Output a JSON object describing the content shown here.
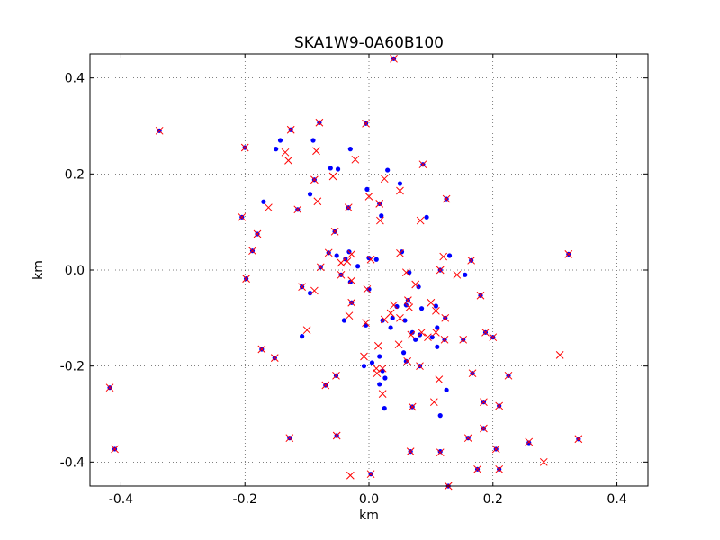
{
  "chart_data": {
    "type": "scatter",
    "title": "SKA1W9-0A60B100",
    "xlabel": "km",
    "ylabel": "km",
    "xlim": [
      -0.45,
      0.45
    ],
    "ylim": [
      -0.45,
      0.45
    ],
    "xticks": [
      "-0.4",
      "-0.2",
      "0.0",
      "0.2",
      "0.4"
    ],
    "yticks": [
      "-0.4",
      "-0.2",
      "0.0",
      "0.2",
      "0.4"
    ],
    "xtick_values": [
      -0.4,
      -0.2,
      0.0,
      0.2,
      0.4
    ],
    "ytick_values": [
      -0.4,
      -0.2,
      0.0,
      0.2,
      0.4
    ],
    "grid": true,
    "colors": {
      "series_1": "#0000ff",
      "series_2": "#ff0000"
    },
    "series": [
      {
        "marker": "dot",
        "color": "#0000ff",
        "points": [
          [
            0.04,
            0.44
          ],
          [
            -0.338,
            0.29
          ],
          [
            -0.2,
            0.255
          ],
          [
            -0.15,
            0.252
          ],
          [
            -0.143,
            0.27
          ],
          [
            -0.126,
            0.292
          ],
          [
            -0.08,
            0.307
          ],
          [
            -0.09,
            0.27
          ],
          [
            -0.062,
            0.212
          ],
          [
            -0.005,
            0.305
          ],
          [
            -0.03,
            0.252
          ],
          [
            -0.05,
            0.21
          ],
          [
            0.087,
            0.22
          ],
          [
            0.03,
            0.208
          ],
          [
            0.05,
            0.18
          ],
          [
            -0.088,
            0.188
          ],
          [
            -0.095,
            0.158
          ],
          [
            -0.003,
            0.168
          ],
          [
            0.017,
            0.138
          ],
          [
            0.125,
            0.148
          ],
          [
            -0.17,
            0.142
          ],
          [
            -0.115,
            0.126
          ],
          [
            -0.033,
            0.13
          ],
          [
            0.093,
            0.11
          ],
          [
            0.02,
            0.113
          ],
          [
            -0.205,
            0.11
          ],
          [
            -0.055,
            0.08
          ],
          [
            -0.18,
            0.075
          ],
          [
            -0.188,
            0.04
          ],
          [
            -0.065,
            0.036
          ],
          [
            -0.032,
            0.038
          ],
          [
            -0.052,
            0.03
          ],
          [
            0.13,
            0.03
          ],
          [
            0.165,
            0.02
          ],
          [
            0.053,
            0.038
          ],
          [
            -0.078,
            0.006
          ],
          [
            -0.038,
            0.023
          ],
          [
            -0.018,
            0.008
          ],
          [
            0.0,
            0.025
          ],
          [
            0.012,
            0.022
          ],
          [
            -0.198,
            -0.018
          ],
          [
            -0.045,
            -0.01
          ],
          [
            -0.03,
            -0.025
          ],
          [
            0.065,
            -0.005
          ],
          [
            0.115,
            0.0
          ],
          [
            0.155,
            -0.01
          ],
          [
            -0.108,
            -0.035
          ],
          [
            -0.095,
            -0.048
          ],
          [
            0.0,
            -0.04
          ],
          [
            0.08,
            -0.035
          ],
          [
            0.063,
            -0.063
          ],
          [
            0.045,
            -0.076
          ],
          [
            0.06,
            -0.073
          ],
          [
            -0.028,
            -0.068
          ],
          [
            0.085,
            -0.08
          ],
          [
            0.108,
            -0.075
          ],
          [
            0.18,
            -0.053
          ],
          [
            -0.04,
            -0.105
          ],
          [
            0.038,
            -0.1
          ],
          [
            0.022,
            -0.105
          ],
          [
            0.058,
            -0.105
          ],
          [
            0.123,
            -0.1
          ],
          [
            -0.005,
            -0.115
          ],
          [
            0.035,
            -0.12
          ],
          [
            0.07,
            -0.13
          ],
          [
            0.082,
            -0.135
          ],
          [
            0.11,
            -0.12
          ],
          [
            0.075,
            -0.145
          ],
          [
            0.102,
            -0.14
          ],
          [
            0.122,
            -0.145
          ],
          [
            0.152,
            -0.145
          ],
          [
            0.188,
            -0.13
          ],
          [
            0.2,
            -0.14
          ],
          [
            -0.108,
            -0.138
          ],
          [
            -0.173,
            -0.165
          ],
          [
            -0.152,
            -0.183
          ],
          [
            0.056,
            -0.172
          ],
          [
            0.11,
            -0.16
          ],
          [
            0.06,
            -0.19
          ],
          [
            0.082,
            -0.2
          ],
          [
            -0.008,
            -0.2
          ],
          [
            0.005,
            -0.193
          ],
          [
            0.017,
            -0.18
          ],
          [
            -0.053,
            -0.22
          ],
          [
            0.022,
            -0.21
          ],
          [
            0.026,
            -0.225
          ],
          [
            0.017,
            -0.238
          ],
          [
            0.167,
            -0.215
          ],
          [
            0.225,
            -0.22
          ],
          [
            -0.07,
            -0.24
          ],
          [
            0.125,
            -0.25
          ],
          [
            0.185,
            -0.275
          ],
          [
            0.07,
            -0.285
          ],
          [
            0.025,
            -0.288
          ],
          [
            0.21,
            -0.283
          ],
          [
            0.115,
            -0.303
          ],
          [
            -0.418,
            -0.245
          ],
          [
            0.185,
            -0.33
          ],
          [
            -0.128,
            -0.35
          ],
          [
            -0.052,
            -0.345
          ],
          [
            0.16,
            -0.35
          ],
          [
            0.258,
            -0.36
          ],
          [
            0.338,
            -0.352
          ],
          [
            -0.41,
            -0.373
          ],
          [
            0.067,
            -0.378
          ],
          [
            0.115,
            -0.378
          ],
          [
            0.205,
            -0.373
          ],
          [
            0.175,
            -0.415
          ],
          [
            0.21,
            -0.415
          ],
          [
            0.003,
            -0.425
          ],
          [
            0.128,
            -0.45
          ],
          [
            0.322,
            0.033
          ]
        ]
      },
      {
        "marker": "x",
        "color": "#ff0000",
        "points": [
          [
            0.04,
            0.44
          ],
          [
            -0.338,
            0.29
          ],
          [
            -0.2,
            0.255
          ],
          [
            -0.126,
            0.292
          ],
          [
            -0.08,
            0.307
          ],
          [
            -0.135,
            0.245
          ],
          [
            -0.13,
            0.228
          ],
          [
            -0.085,
            0.248
          ],
          [
            -0.005,
            0.305
          ],
          [
            -0.022,
            0.23
          ],
          [
            -0.058,
            0.195
          ],
          [
            0.087,
            0.22
          ],
          [
            0.025,
            0.19
          ],
          [
            0.05,
            0.165
          ],
          [
            -0.088,
            0.188
          ],
          [
            -0.083,
            0.143
          ],
          [
            -0.162,
            0.13
          ],
          [
            0.0,
            0.153
          ],
          [
            0.017,
            0.138
          ],
          [
            0.125,
            0.148
          ],
          [
            -0.115,
            0.126
          ],
          [
            -0.033,
            0.13
          ],
          [
            0.083,
            0.103
          ],
          [
            0.018,
            0.103
          ],
          [
            -0.205,
            0.11
          ],
          [
            -0.055,
            0.08
          ],
          [
            -0.18,
            0.075
          ],
          [
            -0.188,
            0.04
          ],
          [
            -0.065,
            0.036
          ],
          [
            -0.028,
            0.033
          ],
          [
            -0.045,
            0.015
          ],
          [
            0.12,
            0.028
          ],
          [
            0.165,
            0.02
          ],
          [
            0.05,
            0.035
          ],
          [
            -0.078,
            0.006
          ],
          [
            -0.035,
            0.018
          ],
          [
            0.003,
            0.022
          ],
          [
            -0.198,
            -0.018
          ],
          [
            -0.045,
            -0.01
          ],
          [
            -0.028,
            -0.022
          ],
          [
            0.06,
            -0.005
          ],
          [
            0.115,
            0.0
          ],
          [
            0.142,
            -0.01
          ],
          [
            -0.108,
            -0.035
          ],
          [
            -0.088,
            -0.043
          ],
          [
            -0.003,
            -0.04
          ],
          [
            0.075,
            -0.03
          ],
          [
            0.063,
            -0.063
          ],
          [
            0.04,
            -0.073
          ],
          [
            0.065,
            -0.078
          ],
          [
            -0.028,
            -0.068
          ],
          [
            0.1,
            -0.068
          ],
          [
            0.108,
            -0.085
          ],
          [
            0.18,
            -0.053
          ],
          [
            -0.032,
            -0.095
          ],
          [
            0.035,
            -0.09
          ],
          [
            0.025,
            -0.103
          ],
          [
            0.05,
            -0.1
          ],
          [
            0.123,
            -0.1
          ],
          [
            -0.005,
            -0.11
          ],
          [
            -0.1,
            -0.125
          ],
          [
            0.068,
            -0.135
          ],
          [
            0.085,
            -0.13
          ],
          [
            0.095,
            -0.14
          ],
          [
            0.108,
            -0.13
          ],
          [
            0.122,
            -0.145
          ],
          [
            0.152,
            -0.145
          ],
          [
            0.188,
            -0.13
          ],
          [
            0.2,
            -0.14
          ],
          [
            0.308,
            -0.177
          ],
          [
            -0.173,
            -0.165
          ],
          [
            -0.152,
            -0.183
          ],
          [
            0.048,
            -0.155
          ],
          [
            0.015,
            -0.158
          ],
          [
            0.062,
            -0.19
          ],
          [
            0.082,
            -0.2
          ],
          [
            -0.008,
            -0.18
          ],
          [
            0.012,
            -0.205
          ],
          [
            0.022,
            -0.205
          ],
          [
            -0.053,
            -0.22
          ],
          [
            0.013,
            -0.215
          ],
          [
            0.022,
            -0.258
          ],
          [
            0.113,
            -0.228
          ],
          [
            0.167,
            -0.215
          ],
          [
            0.225,
            -0.22
          ],
          [
            -0.07,
            -0.24
          ],
          [
            0.105,
            -0.275
          ],
          [
            0.185,
            -0.275
          ],
          [
            0.07,
            -0.285
          ],
          [
            0.21,
            -0.283
          ],
          [
            -0.418,
            -0.245
          ],
          [
            0.185,
            -0.33
          ],
          [
            -0.128,
            -0.35
          ],
          [
            -0.052,
            -0.345
          ],
          [
            0.16,
            -0.35
          ],
          [
            0.258,
            -0.358
          ],
          [
            0.338,
            -0.352
          ],
          [
            -0.41,
            -0.373
          ],
          [
            0.067,
            -0.378
          ],
          [
            0.115,
            -0.38
          ],
          [
            0.205,
            -0.373
          ],
          [
            0.282,
            -0.4
          ],
          [
            0.175,
            -0.415
          ],
          [
            0.21,
            -0.415
          ],
          [
            -0.03,
            -0.428
          ],
          [
            0.003,
            -0.425
          ],
          [
            0.128,
            -0.45
          ],
          [
            0.322,
            0.033
          ]
        ]
      }
    ]
  }
}
